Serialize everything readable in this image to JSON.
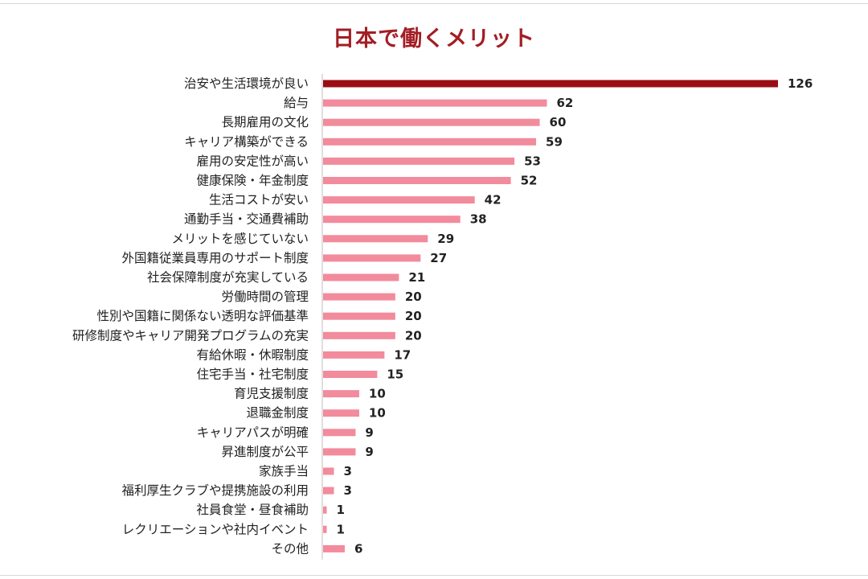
{
  "chart_data": {
    "type": "bar",
    "orientation": "horizontal",
    "title": "日本で働くメリット",
    "categories": [
      "治安や生活環境が良い",
      "給与",
      "長期雇用の文化",
      "キャリア構築ができる",
      "雇用の安定性が高い",
      "健康保険・年金制度",
      "生活コストが安い",
      "通勤手当・交通費補助",
      "メリットを感じていない",
      "外国籍従業員専用のサポート制度",
      "社会保障制度が充実している",
      "労働時間の管理",
      "性別や国籍に関係ない透明な評価基準",
      "研修制度やキャリア開発プログラムの充実",
      "有給休暇・休暇制度",
      "住宅手当・社宅制度",
      "育児支援制度",
      "退職金制度",
      "キャリアパスが明確",
      "昇進制度が公平",
      "家族手当",
      "福利厚生クラブや提携施設の利用",
      "社員食堂・昼食補助",
      "レクリエーションや社内イベント",
      "その他"
    ],
    "values": [
      126,
      62,
      60,
      59,
      53,
      52,
      42,
      38,
      29,
      27,
      21,
      20,
      20,
      20,
      17,
      15,
      10,
      10,
      9,
      9,
      3,
      3,
      1,
      1,
      6
    ],
    "xlim": [
      0,
      126
    ],
    "grid": false,
    "legend": "none",
    "colors": {
      "highlight": "#9b0d14",
      "bar": "#f28b9c",
      "title": "#a31d24"
    }
  }
}
